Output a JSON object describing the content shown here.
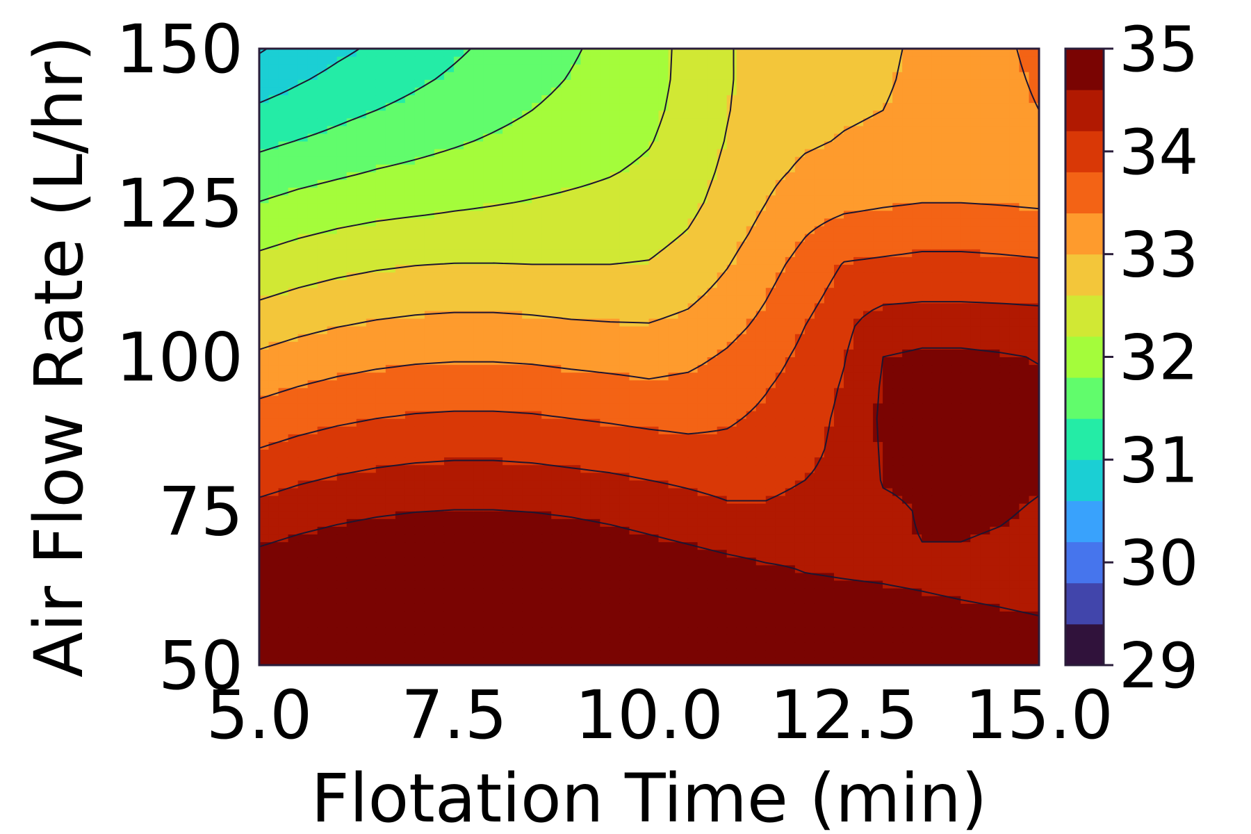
{
  "chart_data": {
    "type": "contourf",
    "title": "",
    "xlabel": "Flotation Time (min)",
    "ylabel": "Air Flow Rate (L/hr)",
    "xlim": [
      5.0,
      15.0
    ],
    "ylim": [
      50,
      150
    ],
    "x_ticks": [
      5.0,
      7.5,
      10.0,
      12.5,
      15.0
    ],
    "x_tick_labels": [
      "5.0",
      "7.5",
      "10.0",
      "12.5",
      "15.0"
    ],
    "y_ticks": [
      50,
      75,
      100,
      125,
      150
    ],
    "y_tick_labels": [
      "50",
      "75",
      "100",
      "125",
      "150"
    ],
    "grid": false,
    "colorbar": {
      "min": 29,
      "max": 35,
      "levels": [
        29.0,
        29.4,
        29.8,
        30.2,
        30.6,
        31.0,
        31.4,
        31.8,
        32.2,
        32.6,
        33.0,
        33.4,
        33.8,
        34.2,
        34.6,
        35.0
      ],
      "colors": [
        "#30123b",
        "#4145ab",
        "#4675ed",
        "#39a2fc",
        "#1bcfd4",
        "#24eca6",
        "#61fc6c",
        "#a4fc3b",
        "#d1e834",
        "#f3c63a",
        "#fe9b2d",
        "#f36315",
        "#d93806",
        "#b11901",
        "#7a0402"
      ],
      "ticks": [
        29,
        30,
        31,
        32,
        33,
        34,
        35
      ],
      "tick_labels": [
        "29",
        "30",
        "31",
        "32",
        "33",
        "34",
        "35"
      ]
    },
    "grid_x": [
      5.0,
      5.5,
      6.0,
      6.5,
      7.0,
      7.5,
      8.0,
      8.5,
      9.0,
      9.5,
      10.0,
      10.5,
      11.0,
      11.5,
      12.0,
      12.5,
      13.0,
      13.5,
      14.0,
      14.5,
      15.0
    ],
    "grid_y": [
      50,
      55,
      60,
      65,
      70,
      75,
      80,
      85,
      90,
      95,
      100,
      105,
      110,
      115,
      120,
      125,
      130,
      135,
      140,
      145,
      150
    ],
    "z_estimated": [
      [
        35.56,
        35.66,
        35.74,
        35.8,
        35.84,
        35.86,
        35.86,
        35.84,
        35.8,
        35.74,
        35.66,
        35.58,
        35.5,
        35.42,
        35.35,
        35.3,
        35.26,
        35.2,
        35.13,
        35.07,
        35.0
      ],
      [
        35.31,
        35.41,
        35.49,
        35.55,
        35.59,
        35.61,
        35.61,
        35.59,
        35.55,
        35.49,
        35.41,
        35.33,
        35.25,
        35.17,
        35.1,
        35.05,
        35.01,
        34.95,
        34.88,
        34.82,
        34.75
      ],
      [
        35.06,
        35.16,
        35.24,
        35.3,
        35.34,
        35.36,
        35.36,
        35.34,
        35.3,
        35.24,
        35.16,
        35.08,
        35.0,
        34.92,
        34.85,
        34.8,
        34.76,
        34.7,
        34.63,
        34.57,
        34.5
      ],
      [
        34.81,
        34.91,
        34.99,
        35.05,
        35.09,
        35.11,
        35.11,
        35.09,
        35.05,
        34.99,
        34.91,
        34.83,
        34.75,
        34.67,
        34.6,
        34.55,
        34.51,
        34.45,
        34.38,
        34.32,
        34.25
      ],
      [
        34.56,
        34.66,
        34.74,
        34.8,
        34.84,
        34.86,
        34.86,
        34.84,
        34.8,
        34.74,
        34.66,
        34.58,
        34.5,
        34.45,
        34.48,
        34.5,
        34.56,
        34.6,
        34.6,
        34.58,
        34.55
      ],
      [
        34.31,
        34.41,
        34.49,
        34.55,
        34.59,
        34.61,
        34.61,
        34.59,
        34.55,
        34.49,
        34.41,
        34.33,
        34.25,
        34.24,
        34.3,
        34.4,
        34.54,
        34.62,
        34.64,
        34.62,
        34.58
      ],
      [
        34.06,
        34.16,
        34.24,
        34.3,
        34.34,
        34.36,
        34.36,
        34.34,
        34.3,
        34.26,
        34.2,
        34.15,
        34.1,
        34.12,
        34.2,
        34.32,
        34.62,
        34.66,
        34.67,
        34.65,
        34.62
      ],
      [
        33.81,
        33.91,
        33.99,
        34.05,
        34.09,
        34.11,
        34.11,
        34.09,
        34.05,
        34.01,
        33.97,
        33.92,
        33.9,
        33.98,
        34.1,
        34.3,
        34.64,
        34.68,
        34.69,
        34.67,
        34.64
      ],
      [
        33.56,
        33.66,
        33.74,
        33.8,
        33.84,
        33.86,
        33.86,
        33.84,
        33.8,
        33.76,
        33.71,
        33.68,
        33.75,
        33.88,
        34.05,
        34.28,
        34.66,
        34.7,
        34.7,
        34.68,
        34.65
      ],
      [
        33.31,
        33.41,
        33.49,
        33.55,
        33.59,
        33.61,
        33.61,
        33.59,
        33.55,
        33.51,
        33.46,
        33.5,
        33.6,
        33.78,
        33.98,
        34.24,
        34.64,
        34.68,
        34.68,
        34.66,
        34.63
      ],
      [
        33.06,
        33.16,
        33.24,
        33.3,
        33.34,
        33.36,
        33.36,
        33.34,
        33.3,
        33.27,
        33.25,
        33.3,
        33.45,
        33.65,
        33.9,
        34.18,
        34.6,
        34.64,
        34.64,
        34.62,
        34.59
      ],
      [
        32.81,
        32.91,
        32.99,
        33.05,
        33.09,
        33.11,
        33.11,
        33.09,
        33.05,
        33.03,
        33.02,
        33.1,
        33.28,
        33.5,
        33.8,
        34.1,
        34.46,
        34.5,
        34.5,
        34.48,
        34.45
      ],
      [
        32.56,
        32.66,
        32.74,
        32.8,
        32.84,
        32.86,
        32.86,
        32.84,
        32.82,
        32.81,
        32.82,
        32.92,
        33.12,
        33.38,
        33.66,
        33.96,
        34.08,
        34.12,
        34.12,
        34.1,
        34.07
      ],
      [
        32.31,
        32.41,
        32.49,
        32.55,
        32.59,
        32.61,
        32.61,
        32.6,
        32.6,
        32.6,
        32.62,
        32.75,
        32.98,
        33.26,
        33.54,
        33.82,
        33.86,
        33.9,
        33.9,
        33.88,
        33.85
      ],
      [
        32.06,
        32.16,
        32.24,
        32.3,
        32.34,
        32.36,
        32.38,
        32.4,
        32.42,
        32.44,
        32.48,
        32.62,
        32.85,
        33.12,
        33.38,
        33.58,
        33.62,
        33.66,
        33.66,
        33.64,
        33.61
      ],
      [
        31.81,
        31.91,
        31.99,
        32.05,
        32.09,
        32.14,
        32.18,
        32.22,
        32.26,
        32.3,
        32.36,
        32.5,
        32.75,
        33.0,
        33.2,
        33.3,
        33.36,
        33.4,
        33.4,
        33.38,
        33.35
      ],
      [
        31.56,
        31.66,
        31.74,
        31.82,
        31.88,
        31.94,
        32.0,
        32.06,
        32.12,
        32.18,
        32.26,
        32.42,
        32.68,
        32.92,
        33.06,
        33.12,
        33.16,
        33.2,
        33.2,
        33.18,
        33.15
      ],
      [
        31.31,
        31.41,
        31.5,
        31.6,
        31.68,
        31.76,
        31.84,
        31.92,
        32.0,
        32.08,
        32.18,
        32.36,
        32.62,
        32.86,
        32.96,
        33.02,
        33.06,
        33.1,
        33.1,
        33.08,
        33.05
      ],
      [
        31.06,
        31.18,
        31.3,
        31.4,
        31.5,
        31.6,
        31.7,
        31.8,
        31.9,
        32.0,
        32.12,
        32.32,
        32.58,
        32.82,
        32.9,
        32.96,
        33.0,
        33.1,
        33.2,
        33.3,
        33.4
      ],
      [
        30.81,
        30.96,
        31.1,
        31.22,
        31.34,
        31.46,
        31.58,
        31.7,
        31.82,
        31.94,
        32.08,
        32.3,
        32.56,
        32.8,
        32.86,
        32.92,
        32.96,
        33.08,
        33.2,
        33.32,
        33.44
      ],
      [
        30.56,
        30.76,
        30.92,
        31.06,
        31.2,
        31.34,
        31.48,
        31.62,
        31.76,
        31.9,
        32.06,
        32.3,
        32.56,
        32.8,
        32.84,
        32.9,
        32.94,
        33.06,
        33.2,
        33.34,
        33.48
      ]
    ]
  }
}
